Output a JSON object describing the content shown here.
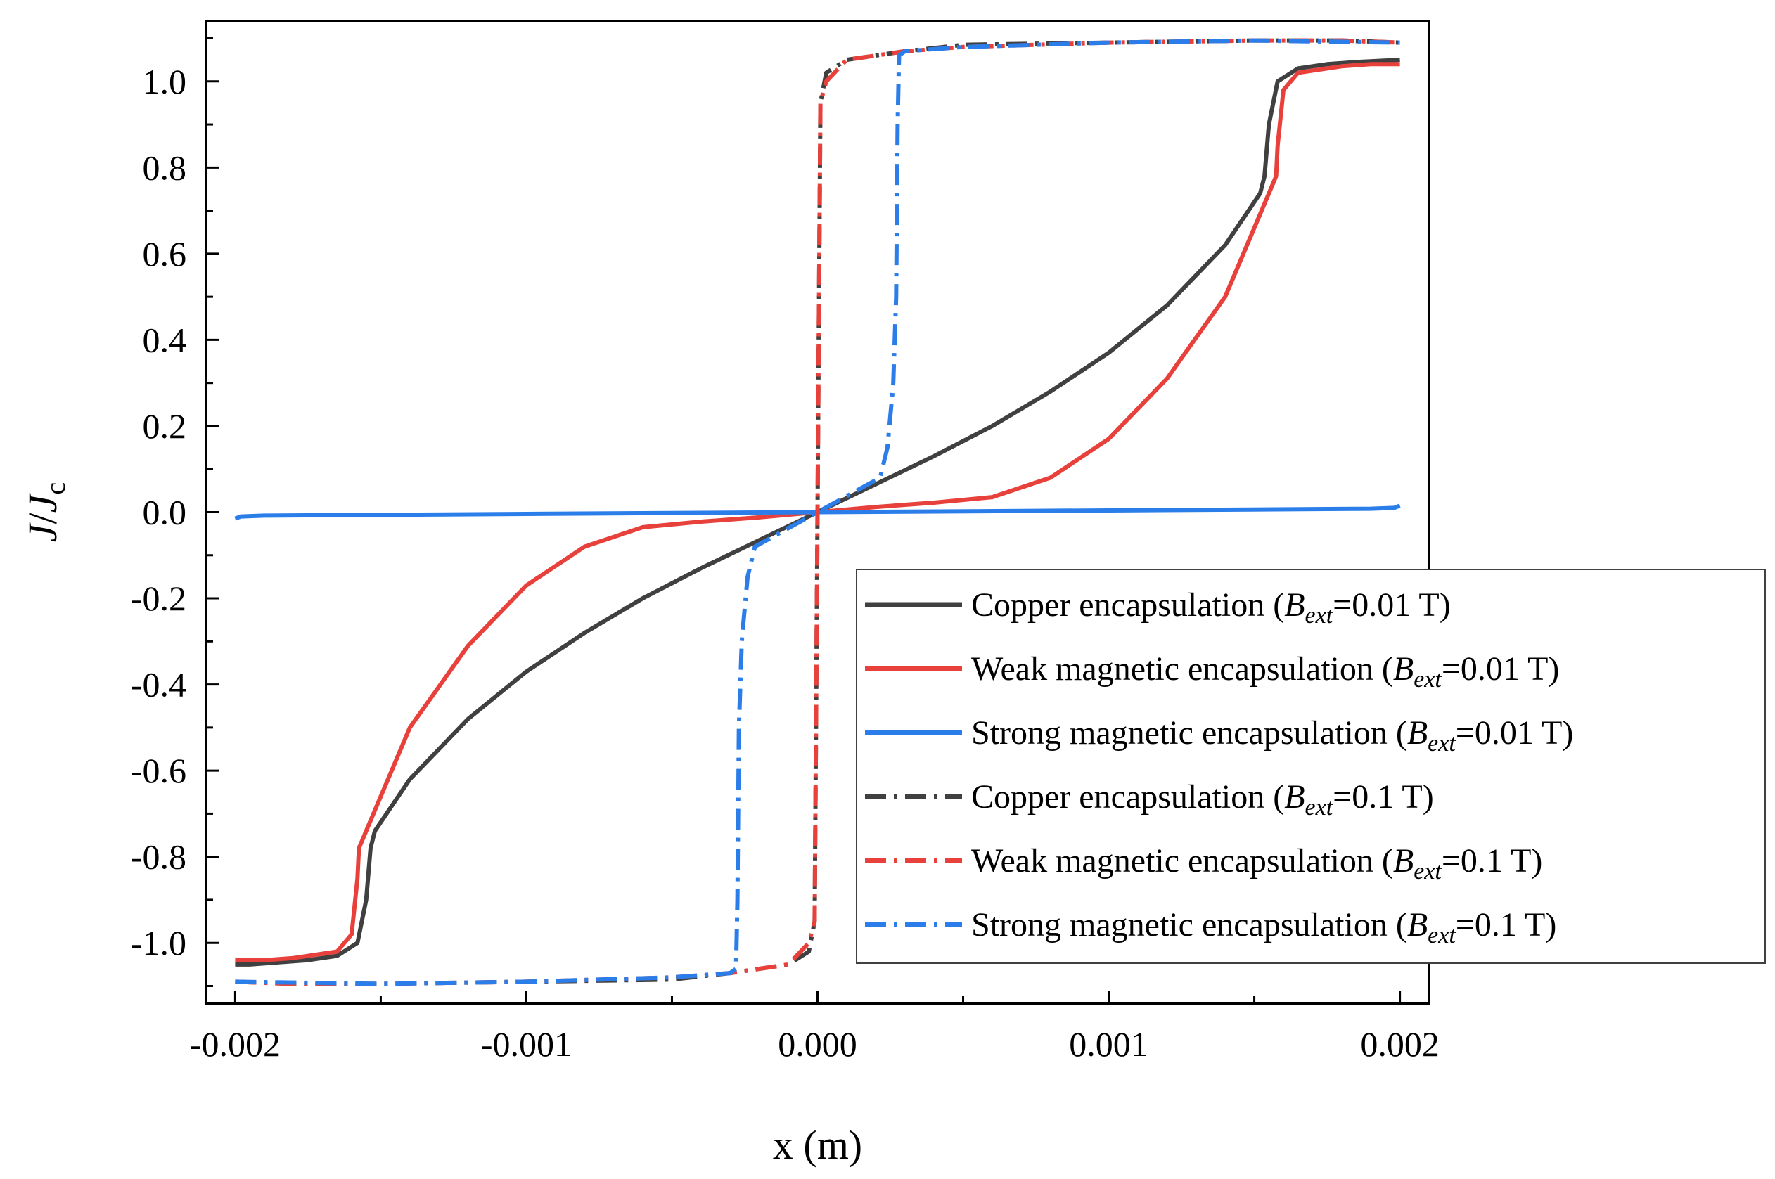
{
  "chart_data": {
    "type": "line",
    "title": "",
    "xlabel": "x (m)",
    "ylabel": {
      "main": "J",
      "slash": "/",
      "sub_base": "J",
      "sub_script": "c"
    },
    "xlim": [
      -0.0021,
      0.0021
    ],
    "ylim": [
      -1.14,
      1.14
    ],
    "x_ticks": [
      {
        "value": -0.002,
        "label": "-0.002"
      },
      {
        "value": -0.001,
        "label": "-0.001"
      },
      {
        "value": 0.0,
        "label": "0.000"
      },
      {
        "value": 0.001,
        "label": "0.001"
      },
      {
        "value": 0.002,
        "label": "0.002"
      }
    ],
    "y_ticks": [
      {
        "value": 1.0,
        "label": "1.0"
      },
      {
        "value": 0.8,
        "label": "0.8"
      },
      {
        "value": 0.6,
        "label": "0.6"
      },
      {
        "value": 0.4,
        "label": "0.4"
      },
      {
        "value": 0.2,
        "label": "0.2"
      },
      {
        "value": 0.0,
        "label": "0.0"
      },
      {
        "value": -0.2,
        "label": "-0.2"
      },
      {
        "value": -0.4,
        "label": "-0.4"
      },
      {
        "value": -0.6,
        "label": "-0.6"
      },
      {
        "value": -0.8,
        "label": "-0.8"
      },
      {
        "value": -1.0,
        "label": "-1.0"
      }
    ],
    "grid": false,
    "legend_position": "bottom-right",
    "series": [
      {
        "id": "copper-001",
        "name": {
          "prefix": "Copper encapsulation (",
          "B": "B",
          "sub": "ext",
          "suffix": "=0.01 T)"
        },
        "color": "#404040",
        "style": "solid",
        "points": [
          [
            -0.002,
            -1.05
          ],
          [
            -0.00195,
            -1.05
          ],
          [
            -0.00185,
            -1.045
          ],
          [
            -0.00175,
            -1.04
          ],
          [
            -0.00165,
            -1.03
          ],
          [
            -0.00158,
            -1.0
          ],
          [
            -0.00155,
            -0.9
          ],
          [
            -0.001535,
            -0.78
          ],
          [
            -0.00152,
            -0.74
          ],
          [
            -0.0014,
            -0.62
          ],
          [
            -0.0012,
            -0.48
          ],
          [
            -0.001,
            -0.37
          ],
          [
            -0.0008,
            -0.28
          ],
          [
            -0.0006,
            -0.2
          ],
          [
            -0.0004,
            -0.13
          ],
          [
            -0.0002,
            -0.065
          ],
          [
            0.0,
            0.0
          ],
          [
            0.0002,
            0.065
          ],
          [
            0.0004,
            0.13
          ],
          [
            0.0006,
            0.2
          ],
          [
            0.0008,
            0.28
          ],
          [
            0.001,
            0.37
          ],
          [
            0.0012,
            0.48
          ],
          [
            0.0014,
            0.62
          ],
          [
            0.00152,
            0.74
          ],
          [
            0.001535,
            0.78
          ],
          [
            0.00155,
            0.9
          ],
          [
            0.00158,
            1.0
          ],
          [
            0.00165,
            1.03
          ],
          [
            0.00175,
            1.04
          ],
          [
            0.00185,
            1.045
          ],
          [
            0.002,
            1.05
          ]
        ]
      },
      {
        "id": "weak-001",
        "name": {
          "prefix": "Weak magnetic encapsulation (",
          "B": "B",
          "sub": "ext",
          "suffix": "=0.01 T)"
        },
        "color": "#e8413c",
        "style": "solid",
        "points": [
          [
            -0.002,
            -1.04
          ],
          [
            -0.00195,
            -1.04
          ],
          [
            -0.0019,
            -1.04
          ],
          [
            -0.0018,
            -1.035
          ],
          [
            -0.00165,
            -1.02
          ],
          [
            -0.0016,
            -0.98
          ],
          [
            -0.00158,
            -0.85
          ],
          [
            -0.001575,
            -0.78
          ],
          [
            -0.00155,
            -0.74
          ],
          [
            -0.0014,
            -0.5
          ],
          [
            -0.0012,
            -0.31
          ],
          [
            -0.001,
            -0.17
          ],
          [
            -0.0008,
            -0.08
          ],
          [
            -0.0006,
            -0.035
          ],
          [
            -0.0004,
            -0.022
          ],
          [
            -0.0002,
            -0.012
          ],
          [
            0.0,
            0.0
          ],
          [
            0.0002,
            0.012
          ],
          [
            0.0004,
            0.022
          ],
          [
            0.0006,
            0.035
          ],
          [
            0.0008,
            0.08
          ],
          [
            0.001,
            0.17
          ],
          [
            0.0012,
            0.31
          ],
          [
            0.0014,
            0.5
          ],
          [
            0.00155,
            0.74
          ],
          [
            0.001575,
            0.78
          ],
          [
            0.00158,
            0.85
          ],
          [
            0.0016,
            0.98
          ],
          [
            0.00165,
            1.02
          ],
          [
            0.0018,
            1.035
          ],
          [
            0.0019,
            1.04
          ],
          [
            0.002,
            1.04
          ]
        ]
      },
      {
        "id": "strong-001",
        "name": {
          "prefix": "Strong magnetic encapsulation (",
          "B": "B",
          "sub": "ext",
          "suffix": "=0.01 T)"
        },
        "color": "#2b7de9",
        "style": "solid",
        "points": [
          [
            -0.002,
            -0.015
          ],
          [
            -0.00198,
            -0.01
          ],
          [
            -0.0019,
            -0.008
          ],
          [
            -0.001,
            -0.004
          ],
          [
            0.0,
            0.0
          ],
          [
            0.001,
            0.004
          ],
          [
            0.0019,
            0.008
          ],
          [
            0.00198,
            0.01
          ],
          [
            0.002,
            0.015
          ]
        ]
      },
      {
        "id": "copper-01",
        "name": {
          "prefix": "Copper encapsulation (",
          "B": "B",
          "sub": "ext",
          "suffix": "=0.1 T)"
        },
        "color": "#404040",
        "style": "dashdot",
        "points": [
          [
            -0.002,
            -1.09
          ],
          [
            -0.0018,
            -1.095
          ],
          [
            -0.0015,
            -1.095
          ],
          [
            -0.001,
            -1.09
          ],
          [
            -0.0005,
            -1.085
          ],
          [
            -0.0003,
            -1.07
          ],
          [
            -0.0001,
            -1.05
          ],
          [
            -3e-05,
            -1.02
          ],
          [
            -1e-05,
            -0.95
          ],
          [
            0.0,
            0.0
          ],
          [
            1e-05,
            0.95
          ],
          [
            3e-05,
            1.02
          ],
          [
            0.0001,
            1.05
          ],
          [
            0.0003,
            1.07
          ],
          [
            0.0005,
            1.085
          ],
          [
            0.001,
            1.09
          ],
          [
            0.0015,
            1.095
          ],
          [
            0.0018,
            1.095
          ],
          [
            0.002,
            1.09
          ]
        ]
      },
      {
        "id": "weak-01",
        "name": {
          "prefix": "Weak magnetic encapsulation (",
          "B": "B",
          "sub": "ext",
          "suffix": "=0.1 T)"
        },
        "color": "#e8413c",
        "style": "dashdot",
        "points": [
          [
            -0.002,
            -1.09
          ],
          [
            -0.0018,
            -1.095
          ],
          [
            -0.0015,
            -1.095
          ],
          [
            -0.001,
            -1.09
          ],
          [
            -0.0005,
            -1.08
          ],
          [
            -0.0003,
            -1.07
          ],
          [
            -0.0001,
            -1.05
          ],
          [
            -3e-05,
            -1.0
          ],
          [
            -1e-05,
            -0.95
          ],
          [
            0.0,
            0.0
          ],
          [
            1e-05,
            0.95
          ],
          [
            3e-05,
            1.0
          ],
          [
            0.0001,
            1.05
          ],
          [
            0.0003,
            1.07
          ],
          [
            0.0005,
            1.08
          ],
          [
            0.001,
            1.09
          ],
          [
            0.0015,
            1.095
          ],
          [
            0.0018,
            1.095
          ],
          [
            0.002,
            1.09
          ]
        ]
      },
      {
        "id": "strong-01",
        "name": {
          "prefix": "Strong magnetic encapsulation (",
          "B": "B",
          "sub": "ext",
          "suffix": "=0.1 T)"
        },
        "color": "#2b7de9",
        "style": "dashdot",
        "points": [
          [
            -0.002,
            -1.09
          ],
          [
            -0.0015,
            -1.095
          ],
          [
            -0.001,
            -1.09
          ],
          [
            -0.0005,
            -1.08
          ],
          [
            -0.0003,
            -1.07
          ],
          [
            -0.00028,
            -1.06
          ],
          [
            -0.000275,
            -0.9
          ],
          [
            -0.00027,
            -0.5
          ],
          [
            -0.00026,
            -0.3
          ],
          [
            -0.000255,
            -0.26
          ],
          [
            -0.00024,
            -0.15
          ],
          [
            -0.000215,
            -0.08
          ],
          [
            0.000215,
            0.08
          ],
          [
            0.00024,
            0.15
          ],
          [
            0.000255,
            0.26
          ],
          [
            0.00026,
            0.3
          ],
          [
            0.00027,
            0.5
          ],
          [
            0.000275,
            0.9
          ],
          [
            0.00028,
            1.06
          ],
          [
            0.0003,
            1.07
          ],
          [
            0.0005,
            1.08
          ],
          [
            0.001,
            1.09
          ],
          [
            0.0015,
            1.095
          ],
          [
            0.002,
            1.09
          ]
        ]
      }
    ]
  }
}
